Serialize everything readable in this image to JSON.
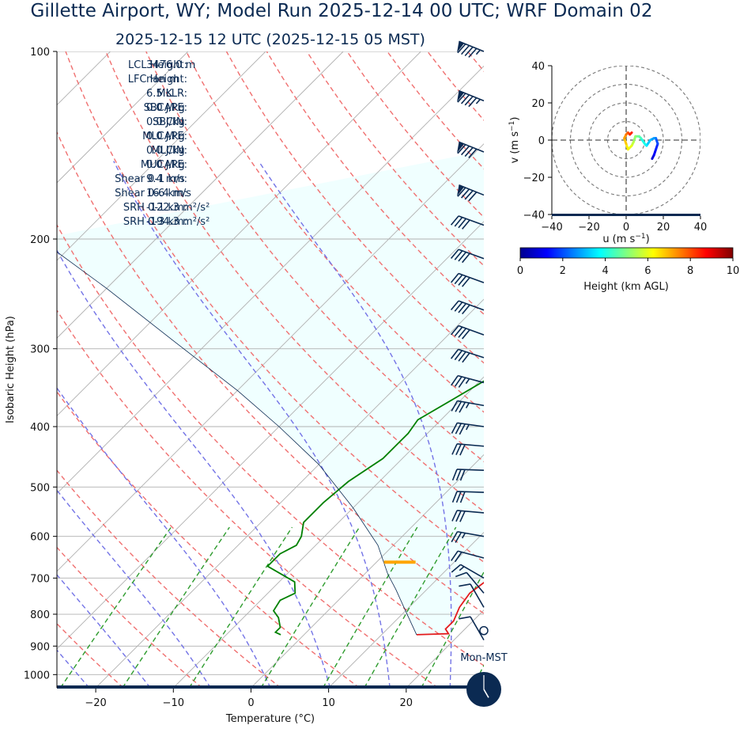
{
  "header": {
    "title": "Gillette  Airport, WY; Model Run 2025-12-14 00 UTC; WRF Domain 02",
    "valid_time": "2025-12-15 12 UTC  (2025-12-15 05 MST)"
  },
  "chart_data": [
    {
      "type": "line",
      "kind": "skew-T log-p sounding",
      "xlabel": "Temperature (°C)",
      "ylabel": "Isobaric Height (hPa)",
      "xlim": [
        -25,
        30
      ],
      "ylim": [
        1050,
        100
      ],
      "y_scale": "log",
      "x_ticks": [
        -20,
        -10,
        0,
        10,
        20
      ],
      "x_tick_labels": [
        "−20",
        "−10",
        "0",
        "10",
        "20"
      ],
      "y_ticks": [
        100,
        200,
        300,
        400,
        500,
        600,
        700,
        800,
        900,
        1000
      ],
      "grid": true,
      "series": [
        {
          "role": "temperature",
          "color": "#e31a1c",
          "points": [
            [
              14.5,
              863
            ],
            [
              18.5,
              860
            ],
            [
              17.5,
              845
            ],
            [
              17.5,
              820
            ],
            [
              16.5,
              780
            ],
            [
              16.0,
              740
            ],
            [
              16.5,
              710
            ],
            [
              16.5,
              690
            ],
            [
              15.0,
              650
            ],
            [
              13.0,
              600
            ],
            [
              12.0,
              575
            ],
            [
              8.5,
              520
            ],
            [
              3.5,
              460
            ],
            [
              -1.0,
              410
            ],
            [
              -4.0,
              370
            ],
            [
              -8.0,
              330
            ],
            [
              -12.0,
              290
            ],
            [
              -14.5,
              260
            ],
            [
              -13.0,
              230
            ],
            [
              -10.0,
              200
            ],
            [
              -4.0,
              180
            ],
            [
              1.0,
              165
            ],
            [
              5.5,
              150
            ],
            [
              8.5,
              137
            ],
            [
              11.0,
              122
            ],
            [
              12.0,
              110
            ],
            [
              13.0,
              100
            ]
          ]
        },
        {
          "role": "dewpoint",
          "color": "#008000",
          "points": [
            [
              -3.0,
              863
            ],
            [
              -4.0,
              855
            ],
            [
              -4.0,
              840
            ],
            [
              -5.5,
              810
            ],
            [
              -7.0,
              790
            ],
            [
              -7.5,
              760
            ],
            [
              -6.5,
              740
            ],
            [
              -8.0,
              710
            ],
            [
              -13.5,
              670
            ],
            [
              -13.5,
              640
            ],
            [
              -12.5,
              620
            ],
            [
              -13.0,
              600
            ],
            [
              -14.5,
              570
            ],
            [
              -14.5,
              530
            ],
            [
              -14.0,
              490
            ],
            [
              -12.5,
              450
            ],
            [
              -12.5,
              410
            ],
            [
              -13.0,
              390
            ],
            [
              -11.0,
              360
            ],
            [
              -8.5,
              325
            ],
            [
              -6.5,
              295
            ],
            [
              -6.5,
              270
            ],
            [
              -7.0,
              245
            ],
            [
              -7.0,
              215
            ],
            [
              -7.5,
              200
            ],
            [
              -8.5,
              180
            ],
            [
              -10.0,
              160
            ],
            [
              -11.0,
              145
            ],
            [
              -8.0,
              135
            ],
            [
              -3.0,
              120
            ],
            [
              0.0,
              110
            ],
            [
              2.0,
              100
            ]
          ]
        },
        {
          "role": "surface-parcel-path",
          "color": "#0b2a52",
          "points": [
            [
              14.5,
              863
            ],
            [
              10.0,
              790
            ],
            [
              6.0,
              730
            ],
            [
              3.0,
              690
            ],
            [
              -2.0,
              620
            ],
            [
              -10.0,
              540
            ],
            [
              -20.0,
              460
            ],
            [
              -30.0,
              400
            ],
            [
              -40.0,
              350
            ],
            [
              -55.0,
              290
            ],
            [
              -70.0,
              240
            ],
            [
              -85.0,
              200
            ]
          ]
        }
      ],
      "lcl_marker": {
        "color": "#ffa500",
        "t": 3.0,
        "p": 660
      },
      "shaded_region": {
        "color": "#f0ffff",
        "between": "parcel-path and temperature"
      }
    },
    {
      "type": "scatter",
      "kind": "hodograph",
      "xlabel": "u (m s",
      "ylabel": "v (m s",
      "unit_exponent": "−1",
      "xlim": [
        -40,
        40
      ],
      "ylim": [
        -40,
        40
      ],
      "x_ticks": [
        -40,
        -20,
        0,
        20,
        40
      ],
      "y_ticks": [
        -40,
        -20,
        0,
        20,
        40
      ],
      "tick_labels": [
        "−40",
        "−20",
        "0",
        "20",
        "40"
      ],
      "rings": [
        10,
        20,
        30,
        40
      ],
      "points": [
        [
          14,
          -10,
          0.4
        ],
        [
          15,
          -8,
          0.8
        ],
        [
          16,
          -5,
          1.2
        ],
        [
          17,
          -2,
          1.6
        ],
        [
          16,
          1,
          2.0
        ],
        [
          15,
          1,
          2.4
        ],
        [
          13,
          0,
          2.8
        ],
        [
          11,
          -3,
          3.2
        ],
        [
          10,
          -2,
          3.6
        ],
        [
          8,
          1,
          4.0
        ],
        [
          7,
          2,
          4.4
        ],
        [
          5,
          2,
          4.8
        ],
        [
          4,
          -1,
          5.2
        ],
        [
          3,
          -3,
          5.6
        ],
        [
          1,
          -5,
          6.0
        ],
        [
          0,
          -2,
          6.4
        ],
        [
          -1,
          1,
          6.8
        ],
        [
          0,
          3,
          7.2
        ],
        [
          1,
          4,
          7.6
        ],
        [
          2,
          3,
          8.0
        ],
        [
          3,
          4,
          8.4
        ]
      ],
      "colorbar": {
        "label": "Height (km AGL)",
        "ticks": [
          0,
          2,
          4,
          6,
          8,
          10
        ],
        "colors": [
          "#00008f",
          "#0000ff",
          "#0080ff",
          "#00ffff",
          "#80ff80",
          "#ffff00",
          "#ff8000",
          "#ff0000",
          "#800000"
        ]
      }
    }
  ],
  "stats": [
    {
      "label": "LCL Height:",
      "value": "3476.0 m"
    },
    {
      "label": "LFC Height:",
      "value": "nan m"
    },
    {
      "label": "MLLR:",
      "value": "6.5 K"
    },
    {
      "label": "SBCAPE:",
      "value": "0.0 J/kg"
    },
    {
      "label": "SBCIN:",
      "value": "0.0 J/kg"
    },
    {
      "label": "MLCAPE:",
      "value": "0.0 J/kg"
    },
    {
      "label": "MLCIN:",
      "value": "0.0 J/kg"
    },
    {
      "label": "MUCAPE:",
      "value": "0.0 J/kg"
    },
    {
      "label": "Shear 0-1 km:",
      "value": "9.4 m/s"
    },
    {
      "label": "Shear 0-6 km:",
      "value": "16.4 m/s"
    },
    {
      "label": "SRH 0-1 km:",
      "value": "-122.3 m²/s²"
    },
    {
      "label": "SRH 0-3 km:",
      "value": "-194.3 m²/s²"
    }
  ],
  "wind_barbs": [
    {
      "p": 100,
      "dir": 292,
      "speed": 95
    },
    {
      "p": 120,
      "dir": 292,
      "speed": 95
    },
    {
      "p": 145,
      "dir": 292,
      "speed": 90
    },
    {
      "p": 170,
      "dir": 292,
      "speed": 90
    },
    {
      "p": 190,
      "dir": 290,
      "speed": 40
    },
    {
      "p": 215,
      "dir": 290,
      "speed": 40
    },
    {
      "p": 235,
      "dir": 290,
      "speed": 40
    },
    {
      "p": 260,
      "dir": 290,
      "speed": 40
    },
    {
      "p": 285,
      "dir": 290,
      "speed": 40
    },
    {
      "p": 310,
      "dir": 288,
      "speed": 40
    },
    {
      "p": 340,
      "dir": 285,
      "speed": 35
    },
    {
      "p": 370,
      "dir": 280,
      "speed": 35
    },
    {
      "p": 400,
      "dir": 278,
      "speed": 35
    },
    {
      "p": 430,
      "dir": 275,
      "speed": 30
    },
    {
      "p": 470,
      "dir": 272,
      "speed": 30
    },
    {
      "p": 510,
      "dir": 272,
      "speed": 30
    },
    {
      "p": 550,
      "dir": 275,
      "speed": 30
    },
    {
      "p": 600,
      "dir": 280,
      "speed": 25
    },
    {
      "p": 650,
      "dir": 285,
      "speed": 20
    },
    {
      "p": 700,
      "dir": 300,
      "speed": 15
    },
    {
      "p": 740,
      "dir": 320,
      "speed": 10
    },
    {
      "p": 780,
      "dir": 330,
      "speed": 10
    },
    {
      "p": 880,
      "dir": 330,
      "speed": 10
    }
  ],
  "calm_label": "",
  "clock": {
    "label": "Mon-MST",
    "hour": 5,
    "minute": 0
  }
}
